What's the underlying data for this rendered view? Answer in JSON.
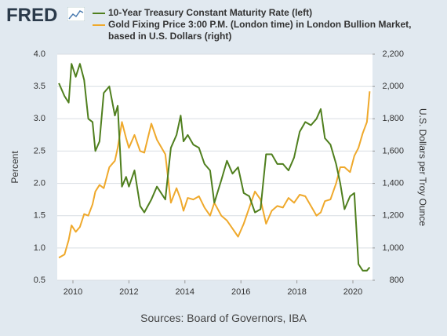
{
  "logo": "FRED",
  "source": "Sources: Board of Governors, IBA",
  "chart_data": {
    "type": "line",
    "y_label": "Percent",
    "y2_label": "U.S. Dollars per Troy Ounce",
    "x": [
      2009.5,
      2009.7,
      2009.85,
      2009.95,
      2010.1,
      2010.25,
      2010.4,
      2010.55,
      2010.7,
      2010.8,
      2010.95,
      2011.1,
      2011.3,
      2011.5,
      2011.6,
      2011.75,
      2011.9,
      2012.0,
      2012.2,
      2012.4,
      2012.55,
      2012.8,
      2013.0,
      2013.3,
      2013.5,
      2013.7,
      2013.85,
      2013.95,
      2014.1,
      2014.3,
      2014.5,
      2014.7,
      2014.9,
      2015.05,
      2015.3,
      2015.5,
      2015.7,
      2015.9,
      2016.1,
      2016.3,
      2016.5,
      2016.7,
      2016.9,
      2017.1,
      2017.3,
      2017.5,
      2017.7,
      2017.9,
      2018.1,
      2018.3,
      2018.5,
      2018.7,
      2018.85,
      2019.0,
      2019.2,
      2019.4,
      2019.55,
      2019.7,
      2019.9,
      2020.05,
      2020.2,
      2020.35,
      2020.5,
      2020.6
    ],
    "series": [
      {
        "name": "10-Year Treasury Constant Maturity Rate (left)",
        "color": "#4f7f1e",
        "axis": "y",
        "values": [
          3.55,
          3.35,
          3.25,
          3.85,
          3.65,
          3.85,
          3.6,
          3.0,
          2.95,
          2.5,
          2.65,
          3.4,
          3.5,
          3.05,
          3.2,
          1.95,
          2.1,
          1.95,
          2.2,
          1.65,
          1.55,
          1.75,
          1.95,
          1.75,
          2.55,
          2.75,
          3.05,
          2.65,
          2.75,
          2.6,
          2.55,
          2.3,
          2.2,
          1.7,
          2.05,
          2.35,
          2.15,
          2.25,
          1.85,
          1.8,
          1.55,
          1.6,
          2.45,
          2.45,
          2.3,
          2.3,
          2.2,
          2.4,
          2.8,
          2.95,
          2.9,
          3.0,
          3.15,
          2.7,
          2.6,
          2.3,
          2.0,
          1.6,
          1.8,
          1.85,
          0.75,
          0.65,
          0.65,
          0.7
        ]
      },
      {
        "name": "Gold Fixing Price 3:00 P.M. (London time) in London Bullion Market, based in U.S. Dollars (right)",
        "color": "#efa92c",
        "axis": "y2",
        "values": [
          940,
          960,
          1050,
          1140,
          1100,
          1130,
          1210,
          1200,
          1270,
          1350,
          1390,
          1370,
          1500,
          1540,
          1620,
          1780,
          1680,
          1620,
          1700,
          1600,
          1590,
          1770,
          1670,
          1580,
          1280,
          1370,
          1300,
          1230,
          1310,
          1300,
          1320,
          1250,
          1200,
          1280,
          1200,
          1170,
          1120,
          1070,
          1150,
          1250,
          1350,
          1300,
          1150,
          1230,
          1260,
          1250,
          1310,
          1280,
          1330,
          1320,
          1260,
          1200,
          1220,
          1290,
          1300,
          1400,
          1500,
          1500,
          1470,
          1570,
          1620,
          1710,
          1780,
          1970
        ]
      }
    ],
    "xlim": [
      2009.44,
      2020.7
    ],
    "xticks": [
      2010,
      2012,
      2014,
      2016,
      2018,
      2020
    ],
    "ylim": [
      0.5,
      4.0
    ],
    "yticks": [
      0.5,
      {
        "value": 1.0,
        "label": "1.0"
      },
      1.5,
      {
        "value": 2.0,
        "label": "2.0"
      },
      2.5,
      {
        "value": 3.0,
        "label": "3.0"
      },
      3.5,
      {
        "value": 4.0,
        "label": "4.0"
      }
    ],
    "y2lim": [
      800,
      2200
    ],
    "y2ticks": [
      800,
      {
        "value": 1000,
        "label": "1,000"
      },
      {
        "value": 1200,
        "label": "1,200"
      },
      {
        "value": 1400,
        "label": "1,400"
      },
      {
        "value": 1600,
        "label": "1,600"
      },
      {
        "value": 1800,
        "label": "1,800"
      },
      {
        "value": 2000,
        "label": "2,000"
      },
      {
        "value": 2200,
        "label": "2,200"
      }
    ],
    "grid": true
  }
}
